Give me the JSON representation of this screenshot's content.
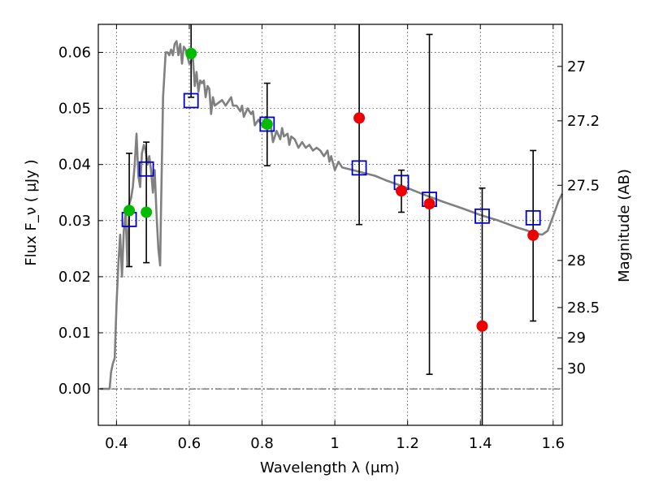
{
  "chart_data": {
    "type": "scatter",
    "xlabel": "Wavelength  λ (μm)",
    "ylabel": "Flux  F_ν  ( μJy )",
    "y2label": "Magnitude (AB)",
    "xlim": [
      0.35,
      1.625
    ],
    "ylim": [
      -0.0065,
      0.065
    ],
    "grid": true,
    "x_ticks": [
      0.4,
      0.6,
      0.8,
      1.0,
      1.2,
      1.4,
      1.6
    ],
    "x_tick_labels": [
      "0.4",
      "0.6",
      "0.8",
      "1",
      "1.2",
      "1.4",
      "1.6"
    ],
    "y_ticks": [
      0.0,
      0.01,
      0.02,
      0.03,
      0.04,
      0.05,
      0.06
    ],
    "y_tick_labels": [
      "0.00",
      "0.01",
      "0.02",
      "0.03",
      "0.04",
      "0.05",
      "0.06"
    ],
    "mag_ticks": [
      {
        "label": "27",
        "flux": 0.0575
      },
      {
        "label": "27.2",
        "flux": 0.0478
      },
      {
        "label": "27.5",
        "flux": 0.0363
      },
      {
        "label": "28",
        "flux": 0.0229
      },
      {
        "label": "28.5",
        "flux": 0.0145
      },
      {
        "label": "29",
        "flux": 0.0091
      },
      {
        "label": "30",
        "flux": 0.0036
      }
    ],
    "series": [
      {
        "name": "",
        "kind": "line",
        "color": "#808080",
        "points": [
          [
            0.355,
            0.0
          ],
          [
            0.381,
            0.0
          ],
          [
            0.385,
            0.003
          ],
          [
            0.39,
            0.0045
          ],
          [
            0.395,
            0.0055
          ],
          [
            0.4,
            0.015
          ],
          [
            0.405,
            0.022
          ],
          [
            0.41,
            0.0275
          ],
          [
            0.415,
            0.02
          ],
          [
            0.42,
            0.028
          ],
          [
            0.425,
            0.0315
          ],
          [
            0.43,
            0.022
          ],
          [
            0.435,
            0.033
          ],
          [
            0.44,
            0.034
          ],
          [
            0.445,
            0.036
          ],
          [
            0.45,
            0.04
          ],
          [
            0.455,
            0.0455
          ],
          [
            0.46,
            0.038
          ],
          [
            0.465,
            0.036
          ],
          [
            0.47,
            0.042
          ],
          [
            0.475,
            0.0435
          ],
          [
            0.48,
            0.0425
          ],
          [
            0.485,
            0.04
          ],
          [
            0.49,
            0.0415
          ],
          [
            0.495,
            0.039
          ],
          [
            0.5,
            0.035
          ],
          [
            0.505,
            0.039
          ],
          [
            0.51,
            0.031
          ],
          [
            0.515,
            0.025
          ],
          [
            0.52,
            0.022
          ],
          [
            0.522,
            0.0305
          ],
          [
            0.528,
            0.052
          ],
          [
            0.535,
            0.06
          ],
          [
            0.54,
            0.06
          ],
          [
            0.545,
            0.0595
          ],
          [
            0.55,
            0.0605
          ],
          [
            0.555,
            0.0595
          ],
          [
            0.56,
            0.0615
          ],
          [
            0.565,
            0.062
          ],
          [
            0.57,
            0.0595
          ],
          [
            0.575,
            0.0615
          ],
          [
            0.58,
            0.058
          ],
          [
            0.585,
            0.061
          ],
          [
            0.59,
            0.0605
          ],
          [
            0.6,
            0.058
          ],
          [
            0.61,
            0.059
          ],
          [
            0.615,
            0.054
          ],
          [
            0.62,
            0.0565
          ],
          [
            0.625,
            0.053
          ],
          [
            0.63,
            0.055
          ],
          [
            0.635,
            0.0545
          ],
          [
            0.64,
            0.055
          ],
          [
            0.645,
            0.052
          ],
          [
            0.65,
            0.054
          ],
          [
            0.655,
            0.0535
          ],
          [
            0.66,
            0.049
          ],
          [
            0.665,
            0.052
          ],
          [
            0.67,
            0.0505
          ],
          [
            0.68,
            0.051
          ],
          [
            0.69,
            0.0515
          ],
          [
            0.7,
            0.0505
          ],
          [
            0.71,
            0.0515
          ],
          [
            0.715,
            0.052
          ],
          [
            0.72,
            0.0505
          ],
          [
            0.73,
            0.0505
          ],
          [
            0.74,
            0.0495
          ],
          [
            0.745,
            0.0505
          ],
          [
            0.75,
            0.0485
          ],
          [
            0.76,
            0.05
          ],
          [
            0.77,
            0.049
          ],
          [
            0.775,
            0.0495
          ],
          [
            0.78,
            0.047
          ],
          [
            0.79,
            0.048
          ],
          [
            0.8,
            0.047
          ],
          [
            0.81,
            0.0485
          ],
          [
            0.815,
            0.0465
          ],
          [
            0.82,
            0.047
          ],
          [
            0.825,
            0.0465
          ],
          [
            0.83,
            0.044
          ],
          [
            0.84,
            0.046
          ],
          [
            0.85,
            0.0445
          ],
          [
            0.855,
            0.0465
          ],
          [
            0.86,
            0.045
          ],
          [
            0.87,
            0.0455
          ],
          [
            0.875,
            0.0435
          ],
          [
            0.88,
            0.045
          ],
          [
            0.89,
            0.0445
          ],
          [
            0.9,
            0.043
          ],
          [
            0.91,
            0.044
          ],
          [
            0.92,
            0.043
          ],
          [
            0.93,
            0.0435
          ],
          [
            0.94,
            0.0425
          ],
          [
            0.95,
            0.043
          ],
          [
            0.96,
            0.0425
          ],
          [
            0.97,
            0.0415
          ],
          [
            0.98,
            0.0425
          ],
          [
            0.985,
            0.0405
          ],
          [
            0.99,
            0.0415
          ],
          [
            1.0,
            0.039
          ],
          [
            1.01,
            0.0405
          ],
          [
            1.02,
            0.0395
          ],
          [
            1.05,
            0.039
          ],
          [
            1.08,
            0.0385
          ],
          [
            1.11,
            0.038
          ],
          [
            1.14,
            0.0372
          ],
          [
            1.17,
            0.0365
          ],
          [
            1.2,
            0.0358
          ],
          [
            1.25,
            0.0345
          ],
          [
            1.3,
            0.0333
          ],
          [
            1.35,
            0.0322
          ],
          [
            1.4,
            0.031
          ],
          [
            1.45,
            0.03
          ],
          [
            1.5,
            0.0288
          ],
          [
            1.53,
            0.0282
          ],
          [
            1.55,
            0.0277
          ],
          [
            1.57,
            0.0275
          ],
          [
            1.585,
            0.0282
          ],
          [
            1.6,
            0.0308
          ],
          [
            1.615,
            0.0335
          ],
          [
            1.625,
            0.0348
          ]
        ]
      },
      {
        "name": "",
        "kind": "errorbar",
        "color": "#000000",
        "points": [
          {
            "x": 0.435,
            "y": 0.032,
            "ylo": 0.0218,
            "yhi": 0.042
          },
          {
            "x": 0.482,
            "y": 0.0335,
            "ylo": 0.0225,
            "yhi": 0.044
          },
          {
            "x": 0.605,
            "y": 0.0545,
            "ylo": 0.052,
            "yhi": 0.065
          },
          {
            "x": 0.814,
            "y": 0.0472,
            "ylo": 0.0398,
            "yhi": 0.0545
          },
          {
            "x": 1.067,
            "y": 0.0385,
            "ylo": 0.0293,
            "yhi": 0.065
          },
          {
            "x": 1.183,
            "y": 0.0353,
            "ylo": 0.0315,
            "yhi": 0.039
          },
          {
            "x": 1.26,
            "y": 0.033,
            "ylo": 0.0026,
            "yhi": 0.0632
          },
          {
            "x": 1.405,
            "y": 0.0305,
            "ylo": -0.0065,
            "yhi": 0.0358
          },
          {
            "x": 1.545,
            "y": 0.0275,
            "ylo": 0.0121,
            "yhi": 0.0425
          }
        ]
      },
      {
        "name": "",
        "kind": "square",
        "color": "#0000cc",
        "points": [
          [
            0.435,
            0.0302
          ],
          [
            0.482,
            0.0392
          ],
          [
            0.605,
            0.0514
          ],
          [
            0.814,
            0.0472
          ],
          [
            1.067,
            0.0394
          ],
          [
            1.183,
            0.0368
          ],
          [
            1.26,
            0.0338
          ],
          [
            1.405,
            0.0308
          ],
          [
            1.545,
            0.0305
          ]
        ]
      },
      {
        "name": "",
        "kind": "circle",
        "color": "#00bb00",
        "points": [
          [
            0.435,
            0.0318
          ],
          [
            0.482,
            0.0315
          ],
          [
            0.605,
            0.0598
          ],
          [
            0.814,
            0.0472
          ]
        ]
      },
      {
        "name": "",
        "kind": "circle",
        "color": "#ee0000",
        "points": [
          [
            1.067,
            0.0483
          ],
          [
            1.183,
            0.0353
          ],
          [
            1.26,
            0.033
          ],
          [
            1.405,
            0.0112
          ],
          [
            1.545,
            0.0274
          ]
        ]
      }
    ]
  }
}
